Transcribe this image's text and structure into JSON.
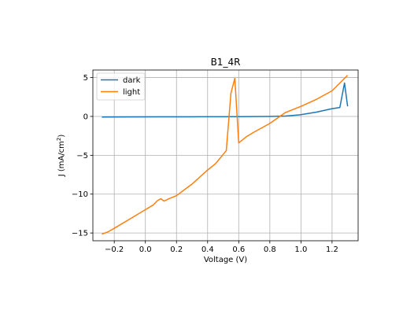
{
  "chart_data": {
    "type": "line",
    "title": "B1_4R",
    "xlabel": "Voltage (V)",
    "ylabel": "J (mA/cm²)",
    "ylabel_base": "J (mA/cm",
    "ylabel_sup": "2",
    "ylabel_end": ")",
    "xlim": [
      -0.3375,
      1.3675
    ],
    "ylim": [
      -16.0,
      5.97
    ],
    "xticks": [
      -0.2,
      0.0,
      0.2,
      0.4,
      0.6,
      0.8,
      1.0,
      1.2
    ],
    "xtick_labels": [
      "−0.2",
      "0.0",
      "0.2",
      "0.4",
      "0.6",
      "0.8",
      "1.0",
      "1.2"
    ],
    "yticks": [
      -15,
      -10,
      -5,
      0,
      5
    ],
    "ytick_labels": [
      "−15",
      "−10",
      "−5",
      "0",
      "5"
    ],
    "grid": true,
    "legend_position": "upper-left",
    "series": [
      {
        "name": "dark",
        "color": "#1f77b4",
        "points": [
          [
            -0.28,
            -0.08
          ],
          [
            -0.1,
            -0.07
          ],
          [
            0.1,
            -0.06
          ],
          [
            0.3,
            -0.05
          ],
          [
            0.5,
            -0.04
          ],
          [
            0.7,
            -0.02
          ],
          [
            0.8,
            0.0
          ],
          [
            0.9,
            0.05
          ],
          [
            1.0,
            0.22
          ],
          [
            1.1,
            0.55
          ],
          [
            1.2,
            1.0
          ],
          [
            1.25,
            1.15
          ],
          [
            1.28,
            4.3
          ],
          [
            1.3,
            1.3
          ]
        ]
      },
      {
        "name": "light",
        "color": "#ff7f0e",
        "points": [
          [
            -0.28,
            -15.15
          ],
          [
            -0.24,
            -14.85
          ],
          [
            -0.2,
            -14.4
          ],
          [
            -0.1,
            -13.2
          ],
          [
            0.0,
            -12.0
          ],
          [
            0.05,
            -11.4
          ],
          [
            0.08,
            -10.8
          ],
          [
            0.1,
            -10.6
          ],
          [
            0.12,
            -10.9
          ],
          [
            0.15,
            -10.6
          ],
          [
            0.2,
            -10.2
          ],
          [
            0.3,
            -8.7
          ],
          [
            0.4,
            -6.9
          ],
          [
            0.45,
            -6.1
          ],
          [
            0.52,
            -4.4
          ],
          [
            0.55,
            3.0
          ],
          [
            0.575,
            4.9
          ],
          [
            0.6,
            -3.4
          ],
          [
            0.65,
            -2.6
          ],
          [
            0.7,
            -2.0
          ],
          [
            0.8,
            -0.9
          ],
          [
            0.9,
            0.5
          ],
          [
            1.0,
            1.3
          ],
          [
            1.1,
            2.2
          ],
          [
            1.2,
            3.3
          ],
          [
            1.3,
            5.3
          ]
        ]
      }
    ]
  }
}
